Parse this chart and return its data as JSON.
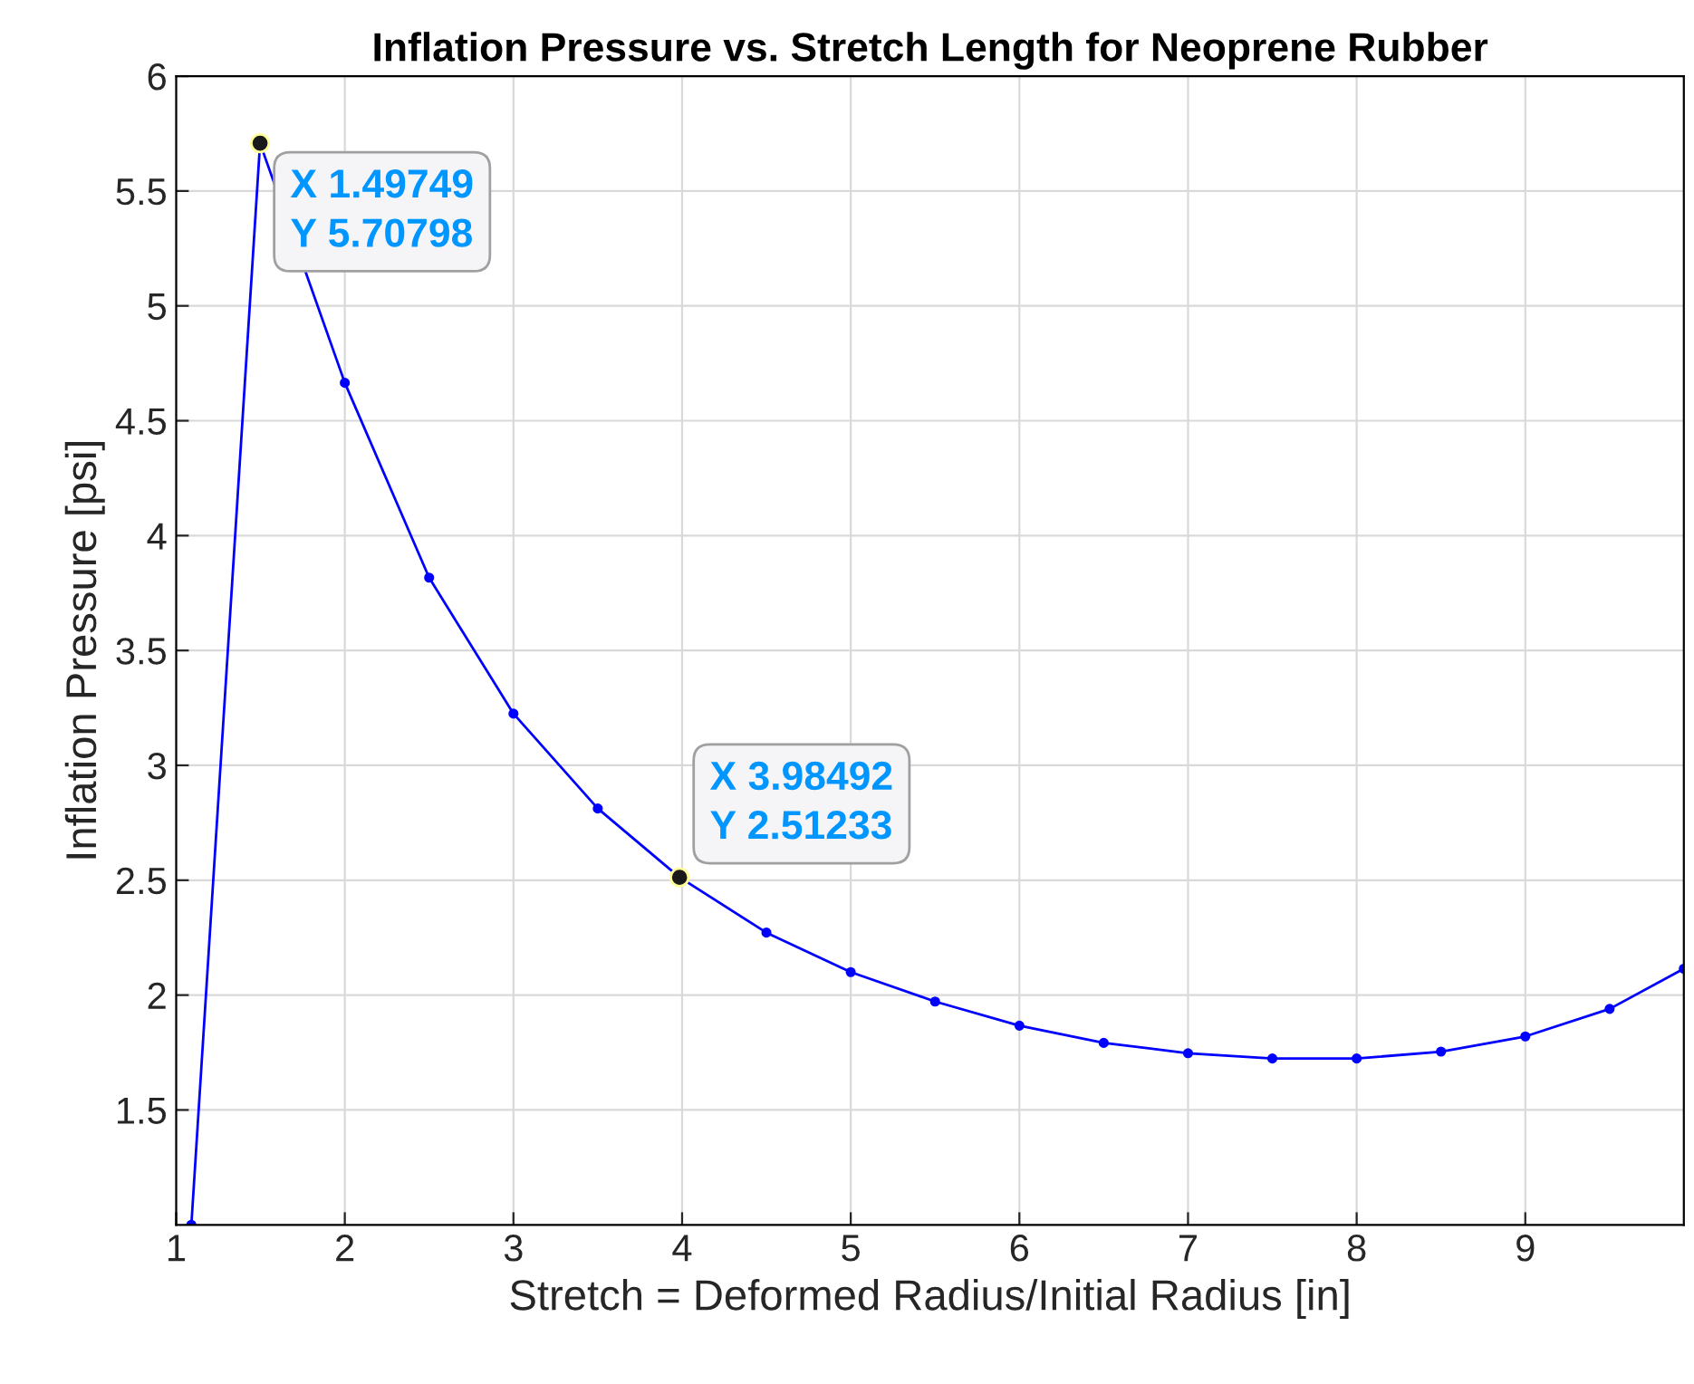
{
  "chart_data": {
    "type": "line",
    "title": "Inflation Pressure vs. Stretch Length for Neoprene Rubber",
    "xlabel": "Stretch = Deformed Radius/Initial Radius [in]",
    "ylabel": "Inflation Pressure [psi]",
    "x": [
      1.09,
      1.49749,
      2,
      2.5,
      3,
      3.5,
      3.98492,
      4.5,
      5,
      5.5,
      6,
      6.5,
      7,
      7.5,
      8,
      8.5,
      9,
      9.5,
      9.94
    ],
    "series": [
      {
        "color": "#0000ff",
        "values": [
          1.0,
          5.70798,
          4.665,
          3.817,
          3.225,
          2.812,
          2.51233,
          2.272,
          2.1,
          1.972,
          1.867,
          1.792,
          1.747,
          1.724,
          1.724,
          1.754,
          1.82,
          1.94,
          2.115
        ]
      }
    ],
    "xlim": [
      1,
      9.94
    ],
    "ylim": [
      1.0,
      6
    ],
    "xticks": [
      1,
      2,
      3,
      4,
      5,
      6,
      7,
      8,
      9
    ],
    "yticks": [
      1.5,
      2,
      2.5,
      3,
      3.5,
      4,
      4.5,
      5,
      5.5,
      6
    ],
    "grid": true,
    "marker": "circle",
    "line_style": "solid",
    "legend": false,
    "annotations": [
      {
        "text": "X 1.49749\nY 5.70798",
        "x": 1.49749,
        "y": 5.70798
      },
      {
        "text": "X 3.98492\nY 2.51233",
        "x": 3.98492,
        "y": 2.51233
      }
    ]
  }
}
